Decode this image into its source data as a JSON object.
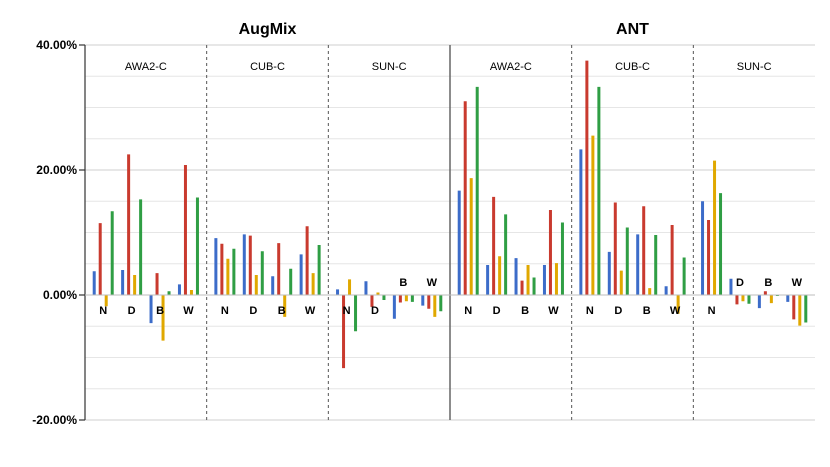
{
  "chart_data": {
    "type": "bar",
    "ylim": [
      -20,
      40
    ],
    "y_tick_labels": [
      "40.00%",
      "20.00%",
      "0.00%",
      "-20.00%"
    ],
    "y_tick_values": [
      40,
      20,
      0,
      -20
    ],
    "grid": true,
    "colors": [
      "#3c6cc9",
      "#c93a2e",
      "#e0a800",
      "#2f9e44"
    ],
    "panels": [
      {
        "title": "AugMix",
        "datasets": [
          {
            "name": "AWA2-C",
            "groups": [
              {
                "label": "N",
                "values": [
                  3.8,
                  11.5,
                  -1.8,
                  13.4
                ]
              },
              {
                "label": "D",
                "values": [
                  4.0,
                  22.5,
                  3.2,
                  15.3
                ]
              },
              {
                "label": "B",
                "values": [
                  -4.5,
                  3.5,
                  -7.3,
                  0.6
                ]
              },
              {
                "label": "W",
                "values": [
                  1.7,
                  20.8,
                  0.8,
                  15.6
                ]
              }
            ]
          },
          {
            "name": "CUB-C",
            "groups": [
              {
                "label": "N",
                "values": [
                  9.1,
                  8.2,
                  5.8,
                  7.4
                ]
              },
              {
                "label": "D",
                "values": [
                  9.7,
                  9.5,
                  3.2,
                  7.0
                ]
              },
              {
                "label": "B",
                "values": [
                  3.0,
                  8.3,
                  -3.5,
                  4.2
                ]
              },
              {
                "label": "W",
                "values": [
                  6.5,
                  11.0,
                  3.5,
                  8.0
                ]
              }
            ]
          },
          {
            "name": "SUN-C",
            "groups": [
              {
                "label": "N",
                "values": [
                  0.9,
                  -11.7,
                  2.5,
                  -5.8
                ]
              },
              {
                "label": "D",
                "values": [
                  2.2,
                  -1.9,
                  0.4,
                  -0.8
                ]
              },
              {
                "label": "B",
                "values": [
                  -3.8,
                  -1.2,
                  -1.0,
                  -1.1
                ]
              },
              {
                "label": "W",
                "values": [
                  -1.7,
                  -2.2,
                  -3.5,
                  -2.6
                ]
              }
            ]
          }
        ]
      },
      {
        "title": "ANT",
        "datasets": [
          {
            "name": "AWA2-C",
            "groups": [
              {
                "label": "N",
                "values": [
                  16.7,
                  31.0,
                  18.7,
                  33.3
                ]
              },
              {
                "label": "D",
                "values": [
                  4.8,
                  15.7,
                  6.2,
                  12.9
                ]
              },
              {
                "label": "B",
                "values": [
                  5.9,
                  2.3,
                  4.8,
                  2.8
                ]
              },
              {
                "label": "W",
                "values": [
                  4.8,
                  13.6,
                  5.1,
                  11.6
                ]
              }
            ]
          },
          {
            "name": "CUB-C",
            "groups": [
              {
                "label": "N",
                "values": [
                  23.3,
                  37.5,
                  25.5,
                  33.3
                ]
              },
              {
                "label": "D",
                "values": [
                  6.9,
                  14.8,
                  3.9,
                  10.8
                ]
              },
              {
                "label": "B",
                "values": [
                  9.7,
                  14.2,
                  1.1,
                  9.6
                ]
              },
              {
                "label": "W",
                "values": [
                  1.4,
                  11.2,
                  -3.0,
                  6.0
                ]
              }
            ]
          },
          {
            "name": "SUN-C",
            "groups": [
              {
                "label": "N",
                "values": [
                  15.0,
                  12.0,
                  21.5,
                  16.3
                ]
              },
              {
                "label": "D",
                "values": [
                  2.6,
                  -1.5,
                  -1.0,
                  -1.4
                ]
              },
              {
                "label": "B",
                "values": [
                  -2.1,
                  0.6,
                  -1.3,
                  0.0
                ]
              },
              {
                "label": "W",
                "values": [
                  -1.1,
                  -3.9,
                  -4.9,
                  -4.4
                ]
              }
            ]
          }
        ]
      }
    ]
  }
}
